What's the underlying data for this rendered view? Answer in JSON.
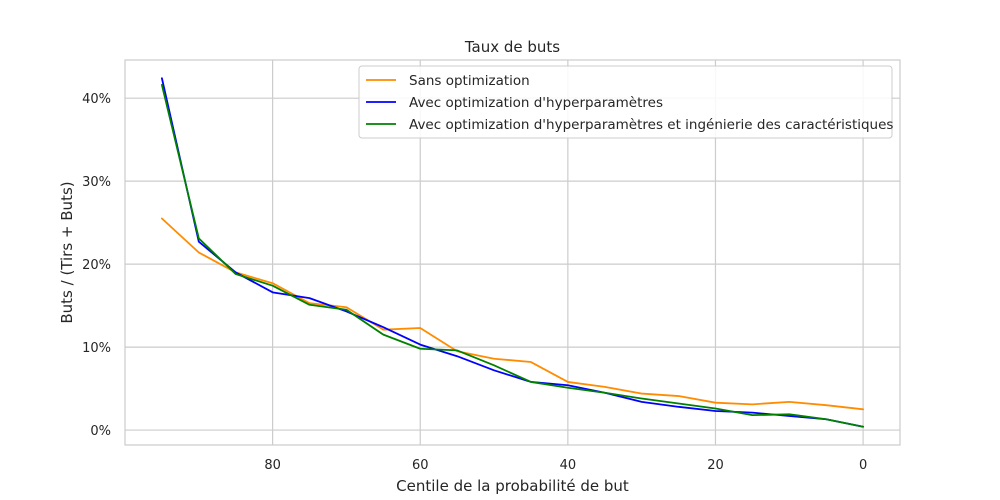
{
  "chart_data": {
    "type": "line",
    "title": "Taux de buts",
    "xlabel": "Centile de la probabilité de but",
    "ylabel": "Buts / (Tirs + Buts)",
    "xlim": [
      100,
      -5
    ],
    "ylim": [
      -1.8,
      44.6
    ],
    "x_inverted": true,
    "x_ticks": [
      80,
      60,
      40,
      20,
      0
    ],
    "y_ticks": [
      0,
      10,
      20,
      30,
      40
    ],
    "y_tick_format": "percent",
    "grid": true,
    "legend_position": "upper right",
    "x": [
      95,
      90,
      85,
      80,
      75,
      70,
      65,
      60,
      55,
      50,
      45,
      40,
      35,
      30,
      25,
      20,
      15,
      10,
      5,
      0
    ],
    "series": [
      {
        "name": "Sans optimization",
        "color": "#ff8c00",
        "values": [
          25.5,
          21.4,
          19.0,
          17.7,
          15.3,
          14.8,
          12.1,
          12.3,
          9.5,
          8.6,
          8.2,
          5.8,
          5.2,
          4.4,
          4.1,
          3.3,
          3.1,
          3.4,
          3.0,
          2.5
        ]
      },
      {
        "name": "Avec optimization d'hyperparamètres",
        "color": "#0000ff",
        "values": [
          42.4,
          22.7,
          19.0,
          16.6,
          15.9,
          14.3,
          12.4,
          10.3,
          8.9,
          7.2,
          5.8,
          5.4,
          4.5,
          3.4,
          2.8,
          2.3,
          2.1,
          1.7,
          1.3,
          0.4
        ]
      },
      {
        "name": "Avec optimization d'hyperparamètres et ingénierie des caractéristiques",
        "color": "#008000",
        "values": [
          41.6,
          23.1,
          18.8,
          17.4,
          15.1,
          14.5,
          11.5,
          9.8,
          9.6,
          7.8,
          5.8,
          5.1,
          4.5,
          3.8,
          3.2,
          2.6,
          1.8,
          1.9,
          1.3,
          0.4
        ]
      }
    ]
  }
}
